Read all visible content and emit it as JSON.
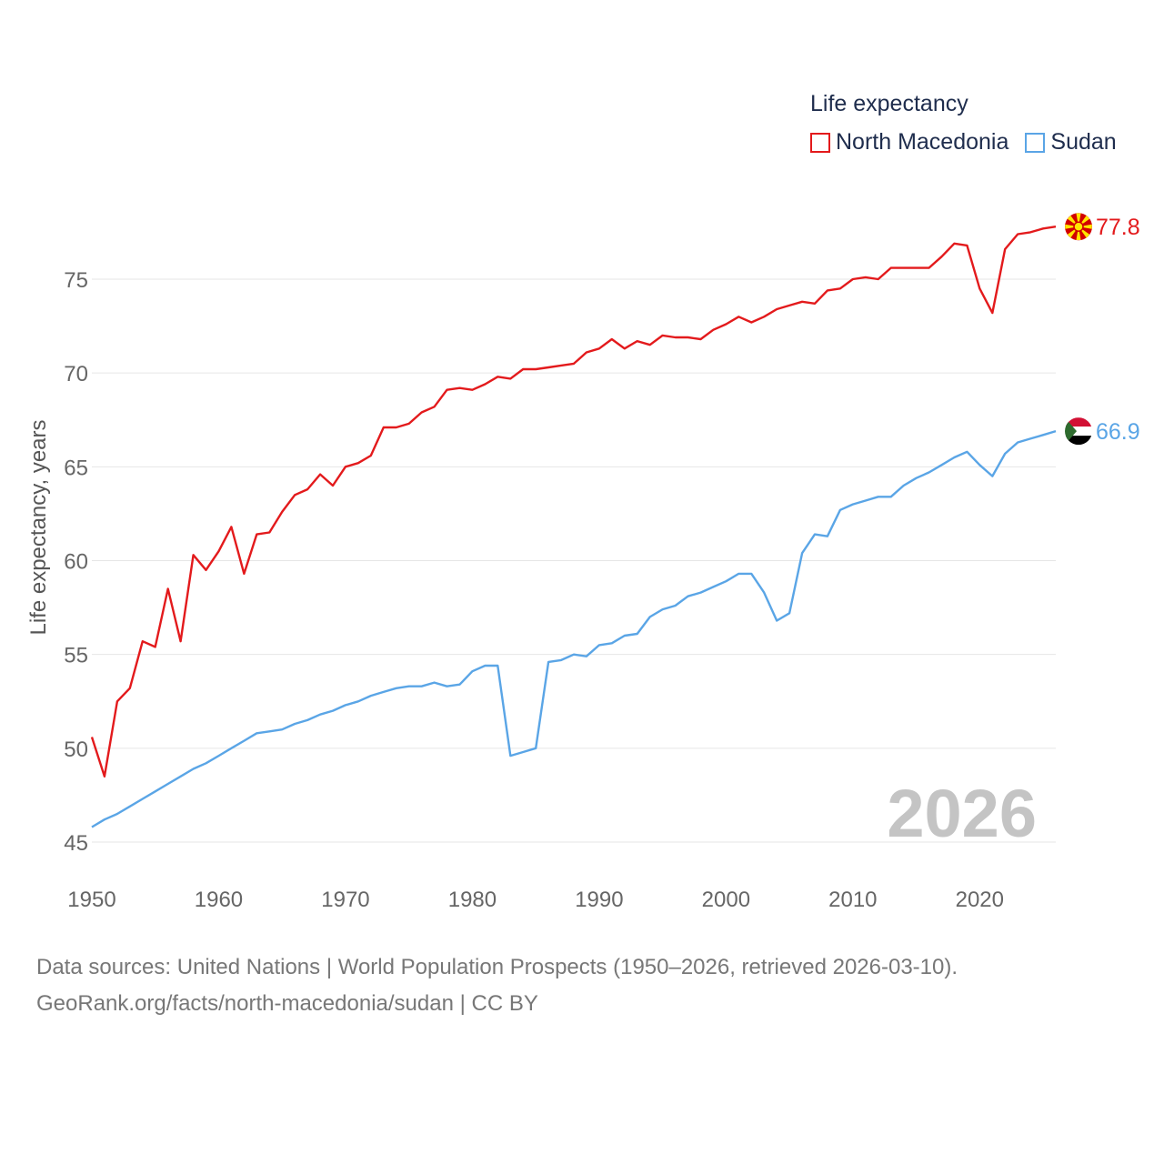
{
  "legend": {
    "title": "Life expectancy",
    "items": [
      {
        "label": "North Macedonia",
        "color": "#e31a1c"
      },
      {
        "label": "Sudan",
        "color": "#5aa5e6"
      }
    ]
  },
  "footer": {
    "line1": "Data sources: United Nations | World Population Prospects (1950–2026, retrieved 2026-03-10).",
    "line2": "GeoRank.org/facts/north-macedonia/sudan | CC BY"
  },
  "chart_data": {
    "type": "line",
    "title": "Life expectancy",
    "ylabel": "Life expectancy, years",
    "xlabel": "",
    "xlim": [
      1950,
      2026
    ],
    "ylim": [
      45,
      80
    ],
    "xticks": [
      1950,
      1960,
      1970,
      1980,
      1990,
      2000,
      2010,
      2020
    ],
    "yticks": [
      45,
      50,
      55,
      60,
      65,
      70,
      75
    ],
    "watermark": "2026",
    "x": [
      1950,
      1951,
      1952,
      1953,
      1954,
      1955,
      1956,
      1957,
      1958,
      1959,
      1960,
      1961,
      1962,
      1963,
      1964,
      1965,
      1966,
      1967,
      1968,
      1969,
      1970,
      1971,
      1972,
      1973,
      1974,
      1975,
      1976,
      1977,
      1978,
      1979,
      1980,
      1981,
      1982,
      1983,
      1984,
      1985,
      1986,
      1987,
      1988,
      1989,
      1990,
      1991,
      1992,
      1993,
      1994,
      1995,
      1996,
      1997,
      1998,
      1999,
      2000,
      2001,
      2002,
      2003,
      2004,
      2005,
      2006,
      2007,
      2008,
      2009,
      2010,
      2011,
      2012,
      2013,
      2014,
      2015,
      2016,
      2017,
      2018,
      2019,
      2020,
      2021,
      2022,
      2023,
      2024,
      2025,
      2026
    ],
    "series": [
      {
        "name": "North Macedonia",
        "color": "#e31a1c",
        "end_label": "77.8",
        "flag": "north-macedonia",
        "values": [
          50.6,
          48.5,
          52.5,
          53.2,
          55.7,
          55.4,
          58.5,
          55.7,
          60.3,
          59.5,
          60.5,
          61.8,
          59.3,
          61.4,
          61.5,
          62.6,
          63.5,
          63.8,
          64.6,
          64.0,
          65.0,
          65.2,
          65.6,
          67.1,
          67.1,
          67.3,
          67.9,
          68.2,
          69.1,
          69.2,
          69.1,
          69.4,
          69.8,
          69.7,
          70.2,
          70.2,
          70.3,
          70.4,
          70.5,
          71.1,
          71.3,
          71.8,
          71.3,
          71.7,
          71.5,
          72.0,
          71.9,
          71.9,
          71.8,
          72.3,
          72.6,
          73.0,
          72.7,
          73.0,
          73.4,
          73.6,
          73.8,
          73.7,
          74.4,
          74.5,
          75.0,
          75.1,
          75.0,
          75.6,
          75.6,
          75.6,
          75.6,
          76.2,
          76.9,
          76.8,
          74.5,
          73.2,
          76.6,
          77.4,
          77.5,
          77.7,
          77.8
        ]
      },
      {
        "name": "Sudan",
        "color": "#5aa5e6",
        "end_label": "66.9",
        "flag": "sudan",
        "values": [
          45.8,
          46.2,
          46.5,
          46.9,
          47.3,
          47.7,
          48.1,
          48.5,
          48.9,
          49.2,
          49.6,
          50.0,
          50.4,
          50.8,
          50.9,
          51.0,
          51.3,
          51.5,
          51.8,
          52.0,
          52.3,
          52.5,
          52.8,
          53.0,
          53.2,
          53.3,
          53.3,
          53.5,
          53.3,
          53.4,
          54.1,
          54.4,
          54.4,
          49.6,
          49.8,
          50.0,
          54.6,
          54.7,
          55.0,
          54.9,
          55.5,
          55.6,
          56.0,
          56.1,
          57.0,
          57.4,
          57.6,
          58.1,
          58.3,
          58.6,
          58.9,
          59.3,
          59.3,
          58.3,
          56.8,
          57.2,
          60.4,
          61.4,
          61.3,
          62.7,
          63.0,
          63.2,
          63.4,
          63.4,
          64.0,
          64.4,
          64.7,
          65.1,
          65.5,
          65.8,
          65.1,
          64.5,
          65.7,
          66.3,
          66.5,
          66.7,
          66.9
        ]
      }
    ]
  }
}
